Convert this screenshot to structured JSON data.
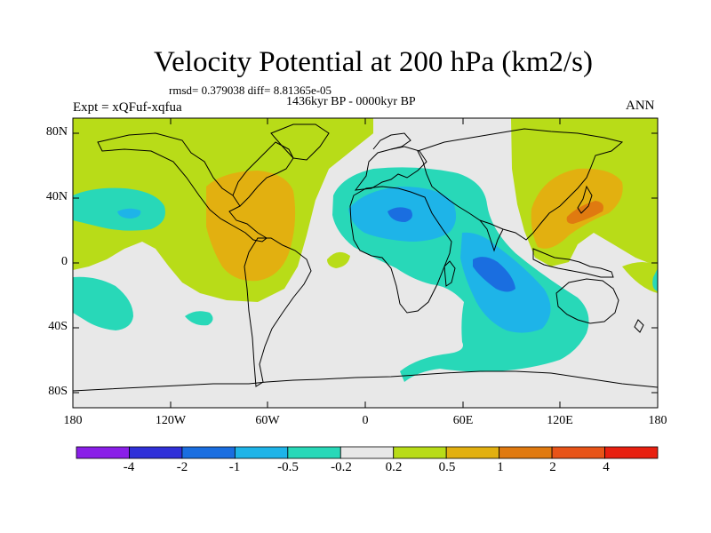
{
  "map": {
    "title": "Velocity Potential at 200 hPa (km2/s)",
    "stats": "rmsd= 0.379038 diff= 8.81365e-05",
    "period": "1436kyr BP - 0000kyr BP",
    "experiment": "Expt = xQFuf-xqfua",
    "season": "ANN",
    "lat_labels": [
      "80N",
      "40N",
      "0",
      "40S",
      "80S"
    ],
    "lon_labels": [
      "180",
      "120W",
      "60W",
      "0",
      "60E",
      "120E",
      "180"
    ]
  },
  "colorbar": {
    "labels": [
      "-4",
      "-2",
      "-1",
      "-0.5",
      "-0.2",
      "0.2",
      "0.5",
      "1",
      "2",
      "4"
    ],
    "colors": [
      "#8a1fe8",
      "#3030d8",
      "#1a6ee0",
      "#1eb4e8",
      "#28d8b8",
      "#e8e8e8",
      "#b8dc18",
      "#e2b010",
      "#e07a10",
      "#e85418",
      "#e82010"
    ]
  },
  "field_colors": {
    "background": "#e8e8e8",
    "positive_weak": "#b8dc18",
    "positive_mid": "#e2b010",
    "positive_strong": "#e07a10",
    "negative_weak": "#28d8b8",
    "negative_mid": "#1eb4e8",
    "negative_strong": "#1a6ee0"
  }
}
